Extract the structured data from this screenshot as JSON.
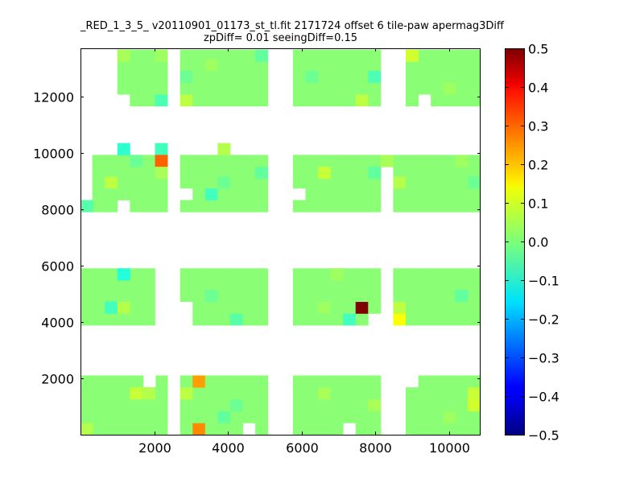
{
  "chart_data": {
    "type": "heatmap",
    "title": "_RED_1_3_5_ v20110901_01173_st_tl.fit 2171724 offset 6 tile-paw apermag3Diff",
    "subtitle": "zpDiff= 0.01 seeingDiff=0.15",
    "xlim": [
      0,
      10850
    ],
    "ylim": [
      0,
      13700
    ],
    "x_ticks": [
      "2000",
      "4000",
      "6000",
      "8000",
      "10000"
    ],
    "y_ticks": [
      "2000",
      "4000",
      "6000",
      "8000",
      "10000",
      "12000"
    ],
    "colorbar": {
      "min": -0.5,
      "max": 0.5,
      "colormap": "jet",
      "ticks": [
        "−0.5",
        "−0.4",
        "−0.3",
        "−0.2",
        "−0.1",
        "0.0",
        "0.1",
        "0.2",
        "0.3",
        "0.4",
        "0.5"
      ]
    },
    "cell_size": [
      340,
      420
    ],
    "background_value": 0.01,
    "regions": [
      {
        "x": [
          1000,
          2360
        ],
        "y": [
          11650,
          13650
        ]
      },
      {
        "x": [
          2700,
          5080
        ],
        "y": [
          11650,
          13650
        ]
      },
      {
        "x": [
          5760,
          8140
        ],
        "y": [
          11650,
          13650
        ]
      },
      {
        "x": [
          8820,
          10850
        ],
        "y": [
          11650,
          13650
        ]
      },
      {
        "x": [
          320,
          2360
        ],
        "y": [
          7900,
          9920
        ]
      },
      {
        "x": [
          2700,
          5080
        ],
        "y": [
          7900,
          9920
        ]
      },
      {
        "x": [
          5760,
          8140
        ],
        "y": [
          7900,
          9920
        ]
      },
      {
        "x": [
          8480,
          10850
        ],
        "y": [
          7900,
          9920
        ]
      },
      {
        "x": [
          0,
          2020
        ],
        "y": [
          3880,
          5900
        ]
      },
      {
        "x": [
          2700,
          5080
        ],
        "y": [
          3880,
          5900
        ]
      },
      {
        "x": [
          5760,
          8140
        ],
        "y": [
          3880,
          5900
        ]
      },
      {
        "x": [
          8480,
          10850
        ],
        "y": [
          3880,
          5900
        ]
      },
      {
        "x": [
          0,
          2360
        ],
        "y": [
          0,
          2100
        ]
      },
      {
        "x": [
          2700,
          5080
        ],
        "y": [
          0,
          2100
        ]
      },
      {
        "x": [
          5760,
          8140
        ],
        "y": [
          0,
          2100
        ]
      },
      {
        "x": [
          8820,
          10850
        ],
        "y": [
          0,
          2100
        ]
      }
    ],
    "extra_cells": [
      {
        "x": 1000,
        "y": 9920,
        "v": -0.08
      },
      {
        "x": 2020,
        "y": 9920,
        "v": -0.06
      },
      {
        "x": 3720,
        "y": 9920,
        "v": 0.05
      },
      {
        "x": 8140,
        "y": 9500,
        "v": 0.04
      }
    ],
    "holes": [
      {
        "x": 1000,
        "y": 11650
      },
      {
        "x": 2700,
        "y": 8320
      },
      {
        "x": 1000,
        "y": 7900
      },
      {
        "x": 4400,
        "y": 5480
      },
      {
        "x": 4740,
        "y": 5480
      },
      {
        "x": 2700,
        "y": 3880
      },
      {
        "x": 2700,
        "y": 4300
      },
      {
        "x": 1700,
        "y": 1680
      },
      {
        "x": 2020,
        "y": 1680
      },
      {
        "x": 4400,
        "y": 0
      },
      {
        "x": 7120,
        "y": 0
      },
      {
        "x": 8820,
        "y": 1680
      },
      {
        "x": 9160,
        "y": 11650
      },
      {
        "x": 8820,
        "y": 5480
      },
      {
        "x": 10500,
        "y": 5480
      },
      {
        "x": 5760,
        "y": 8320
      },
      {
        "x": 7800,
        "y": 3880
      }
    ],
    "cells": [
      {
        "x": 1000,
        "y": 13230,
        "v": 0.04
      },
      {
        "x": 2020,
        "y": 13230,
        "v": 0.03
      },
      {
        "x": 2020,
        "y": 11650,
        "v": -0.05
      },
      {
        "x": 2700,
        "y": 11650,
        "v": 0.06
      },
      {
        "x": 2700,
        "y": 12490,
        "v": -0.02
      },
      {
        "x": 3380,
        "y": 12910,
        "v": 0.03
      },
      {
        "x": 4740,
        "y": 13230,
        "v": -0.03
      },
      {
        "x": 6100,
        "y": 12490,
        "v": -0.02
      },
      {
        "x": 7460,
        "y": 11650,
        "v": 0.06
      },
      {
        "x": 7800,
        "y": 12490,
        "v": -0.05
      },
      {
        "x": 8820,
        "y": 13230,
        "v": 0.08
      },
      {
        "x": 9840,
        "y": 12070,
        "v": 0.03
      },
      {
        "x": 1340,
        "y": 9500,
        "v": -0.02
      },
      {
        "x": 2020,
        "y": 9500,
        "v": 0.28
      },
      {
        "x": 2020,
        "y": 9080,
        "v": 0.04
      },
      {
        "x": 660,
        "y": 8740,
        "v": 0.06
      },
      {
        "x": 0,
        "y": 7900,
        "v": -0.04
      },
      {
        "x": 3380,
        "y": 8320,
        "v": -0.06
      },
      {
        "x": 3720,
        "y": 8740,
        "v": -0.02
      },
      {
        "x": 4740,
        "y": 9080,
        "v": -0.03
      },
      {
        "x": 6440,
        "y": 9080,
        "v": 0.07
      },
      {
        "x": 7800,
        "y": 9080,
        "v": -0.03
      },
      {
        "x": 8480,
        "y": 8740,
        "v": 0.05
      },
      {
        "x": 10160,
        "y": 9500,
        "v": 0.03
      },
      {
        "x": 10500,
        "y": 8740,
        "v": -0.02
      },
      {
        "x": 1000,
        "y": 5480,
        "v": -0.09
      },
      {
        "x": 660,
        "y": 4300,
        "v": -0.06
      },
      {
        "x": 1000,
        "y": 4300,
        "v": 0.05
      },
      {
        "x": 3380,
        "y": 4720,
        "v": -0.02
      },
      {
        "x": 4060,
        "y": 3880,
        "v": -0.04
      },
      {
        "x": 6440,
        "y": 4300,
        "v": 0.03
      },
      {
        "x": 7120,
        "y": 3880,
        "v": -0.06
      },
      {
        "x": 7460,
        "y": 4300,
        "v": 0.5
      },
      {
        "x": 6780,
        "y": 5480,
        "v": 0.03
      },
      {
        "x": 8480,
        "y": 4300,
        "v": 0.06
      },
      {
        "x": 8480,
        "y": 3880,
        "v": 0.12
      },
      {
        "x": 10160,
        "y": 4720,
        "v": -0.03
      },
      {
        "x": 3040,
        "y": 1680,
        "v": 0.22
      },
      {
        "x": 3040,
        "y": 0,
        "v": 0.24
      },
      {
        "x": 1340,
        "y": 1260,
        "v": 0.07
      },
      {
        "x": 1680,
        "y": 1260,
        "v": 0.05
      },
      {
        "x": 0,
        "y": 0,
        "v": 0.05
      },
      {
        "x": 2700,
        "y": 1260,
        "v": 0.06
      },
      {
        "x": 3720,
        "y": 420,
        "v": -0.03
      },
      {
        "x": 4060,
        "y": 840,
        "v": -0.02
      },
      {
        "x": 6440,
        "y": 1260,
        "v": 0.04
      },
      {
        "x": 7800,
        "y": 840,
        "v": 0.04
      },
      {
        "x": 10500,
        "y": 840,
        "v": 0.08
      },
      {
        "x": 9840,
        "y": 420,
        "v": 0.03
      },
      {
        "x": 10500,
        "y": 1260,
        "v": 0.07
      }
    ]
  }
}
